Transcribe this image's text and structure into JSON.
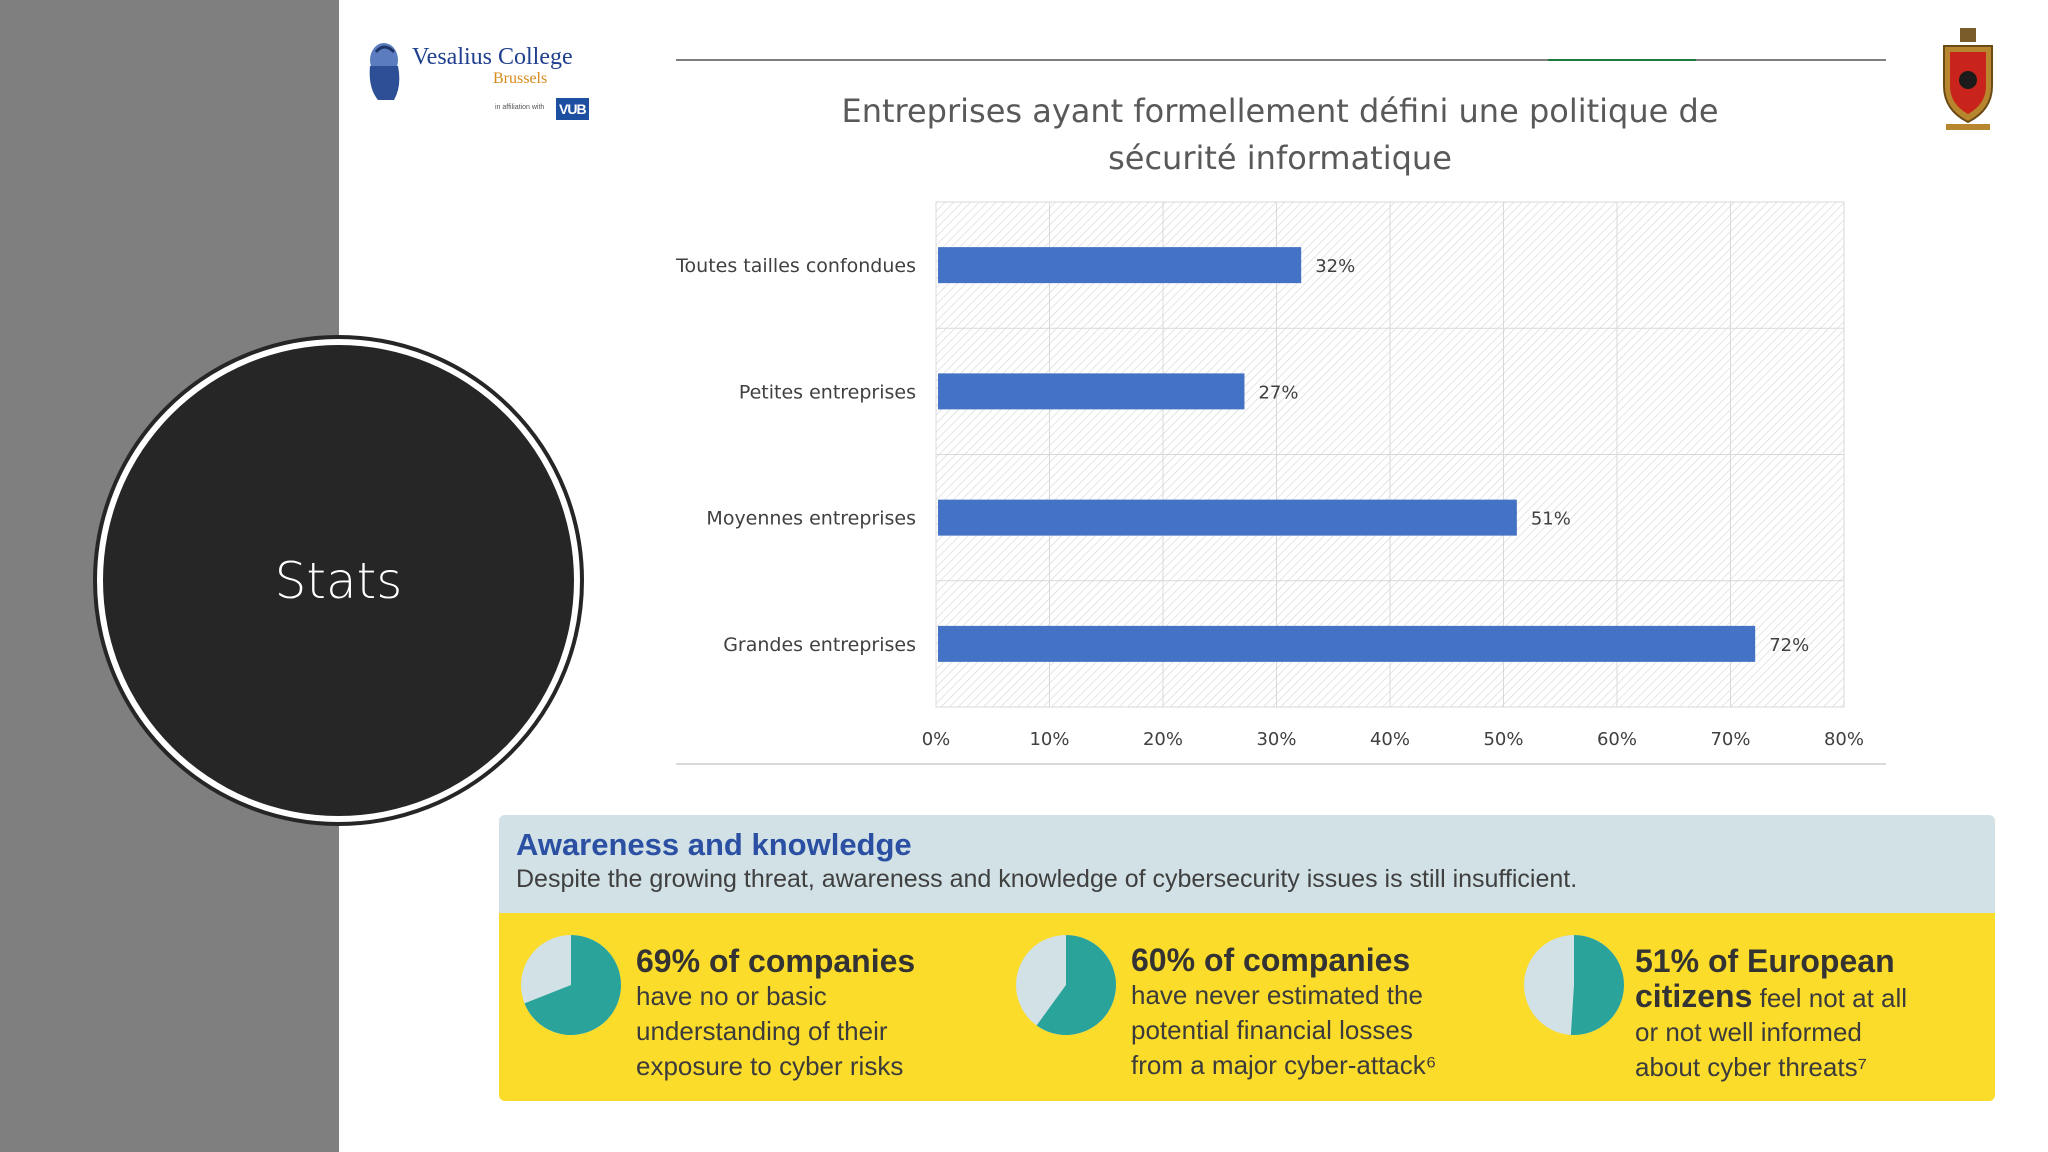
{
  "sidebar": {
    "title": "Stats"
  },
  "logo": {
    "name": "Vesalius College",
    "city": "Brussels",
    "affiliation": "in affiliation with",
    "partner": "VUB"
  },
  "chart_data": {
    "type": "bar",
    "orientation": "horizontal",
    "title_line1": "Entreprises ayant formellement défini une politique de",
    "title_line2": "sécurité informatique",
    "categories": [
      "Toutes tailles confondues",
      "Petites entreprises",
      "Moyennes entreprises",
      "Grandes entreprises"
    ],
    "values": [
      32,
      27,
      51,
      72
    ],
    "value_labels": [
      "32%",
      "27%",
      "51%",
      "72%"
    ],
    "xlim": [
      0,
      80
    ],
    "xticks": [
      0,
      10,
      20,
      30,
      40,
      50,
      60,
      70,
      80
    ],
    "xtick_labels": [
      "0%",
      "10%",
      "20%",
      "30%",
      "40%",
      "50%",
      "60%",
      "70%",
      "80%"
    ],
    "grid": true,
    "bar_color": "#4472c4"
  },
  "awareness": {
    "title": "Awareness and knowledge",
    "subtitle": "Despite the growing threat, awareness and knowledge of cybersecurity issues is still insufficient.",
    "stats": [
      {
        "percent": 69,
        "headline": "69% of companies",
        "lines": [
          "have no or basic",
          "understanding of their",
          "exposure to cyber risks"
        ]
      },
      {
        "percent": 60,
        "headline": "60% of companies",
        "lines": [
          "have never estimated the",
          "potential financial losses",
          "from a major cyber-attack⁶"
        ]
      },
      {
        "percent": 51,
        "headline": "51% of European",
        "headline2": "citizens",
        "headline2_rest": " feel not at all",
        "lines": [
          "or not well informed",
          "about cyber threats⁷"
        ]
      }
    ],
    "colors": {
      "pie_fill": "#2aa39b",
      "pie_base": "#d1e1e5",
      "title": "#2a4fa3",
      "panel": "#fcdc2a"
    }
  }
}
